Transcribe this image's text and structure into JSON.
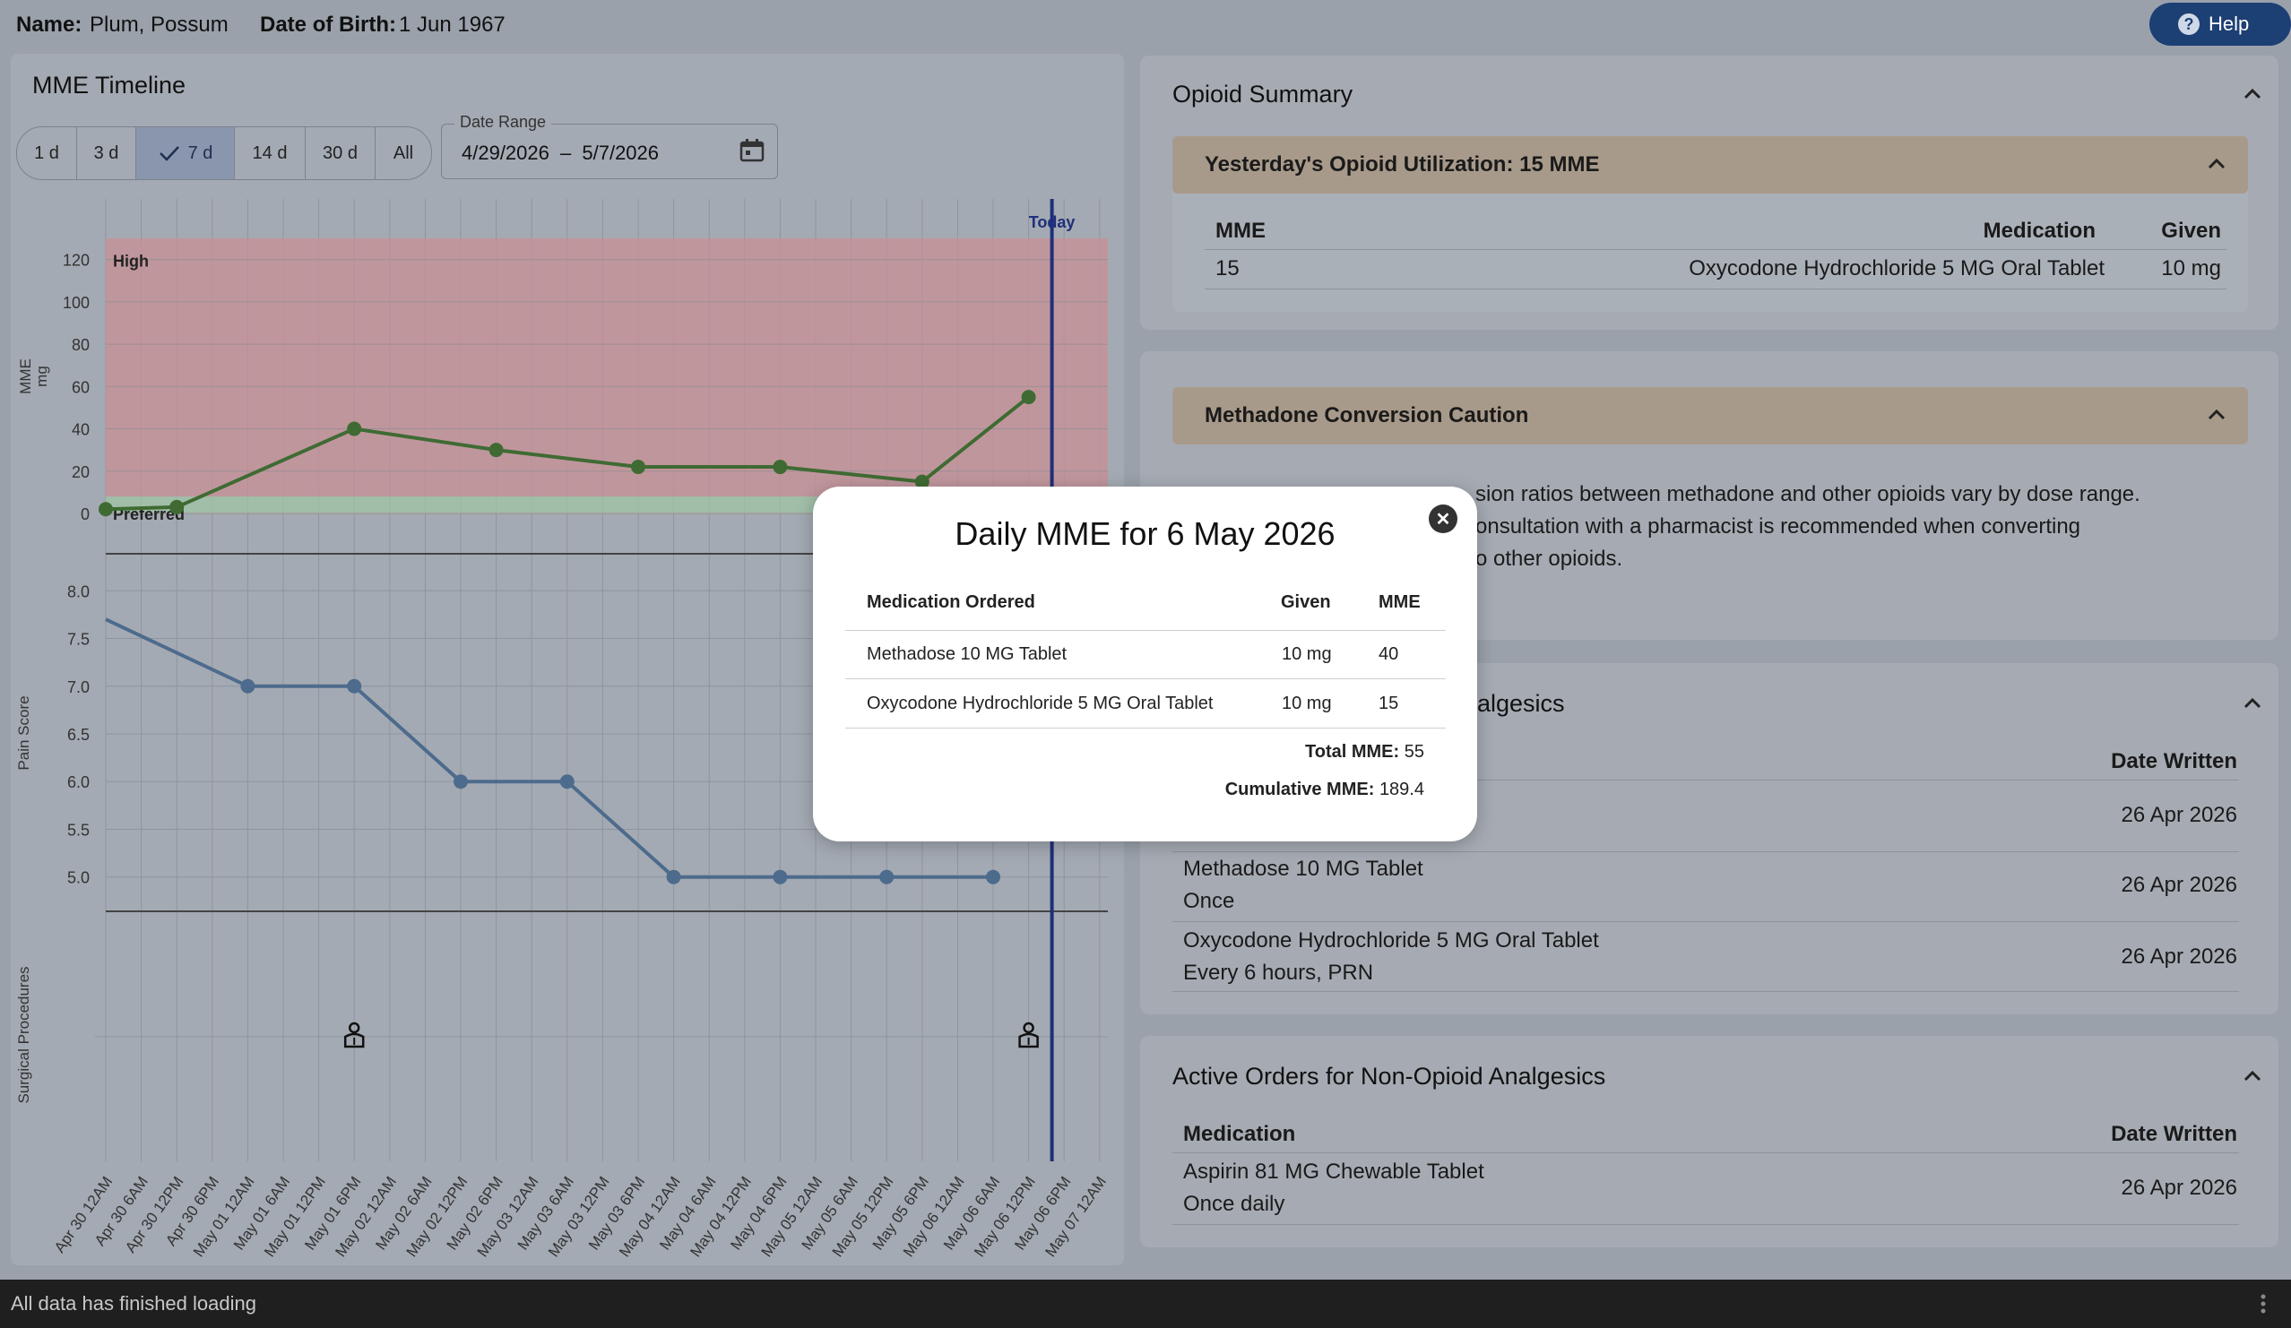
{
  "header": {
    "name_label": "Name:",
    "name_value": "Plum, Possum",
    "dob_label": "Date of Birth:",
    "dob_value": "1 Jun 1967",
    "help_label": "Help",
    "help_icon": "?"
  },
  "timeline": {
    "title": "MME Timeline",
    "ranges": [
      "1 d",
      "3 d",
      "7 d",
      "14 d",
      "30 d",
      "All"
    ],
    "selected_range": "7 d",
    "date_range_label": "Date Range",
    "date_start": "4/29/2026",
    "date_sep": "–",
    "date_end": "5/7/2026",
    "today_label": "Today"
  },
  "chart_data": [
    {
      "type": "line",
      "ylabel": "MME\nmg",
      "ylim": [
        0,
        130
      ],
      "yticks": [
        0,
        20,
        40,
        60,
        80,
        100,
        120
      ],
      "zones": [
        {
          "label": "High"
        },
        {
          "label": "Preferred"
        }
      ],
      "series": [
        {
          "x": [
            "Apr 30 12AM",
            "Apr 30 12PM",
            "May 01 6PM",
            "May 02 6PM",
            "May 03 6PM",
            "May 04 6PM",
            "May 05 6PM",
            "May 06 12PM"
          ],
          "values": [
            2,
            3,
            40,
            30,
            22,
            22,
            15,
            55
          ]
        }
      ],
      "colors": {
        "line": "#3f6b33",
        "high": "#c98f95",
        "preferred": "#9fc4a4"
      }
    },
    {
      "type": "line",
      "ylabel": "Pain Score",
      "ylim": [
        4.8,
        8.2
      ],
      "yticks": [
        "5.0",
        "5.5",
        "6.0",
        "6.5",
        "7.0",
        "7.5",
        "8.0"
      ],
      "series": [
        {
          "x": [
            "Apr 30 12AM",
            "May 01 12AM",
            "May 01 6PM",
            "May 02 12PM",
            "May 03 6AM",
            "May 04 12AM",
            "May 04 6PM",
            "May 05 12PM",
            "May 06 6AM"
          ],
          "values": [
            7.7,
            7.0,
            7.0,
            6.0,
            6.0,
            5.0,
            5.0,
            5.0,
            5.0
          ]
        }
      ],
      "colors": {
        "line": "#4d6b8c"
      }
    },
    {
      "type": "scatter",
      "ylabel": "Surgical Procedures",
      "series": [
        {
          "x": [
            "May 01 6PM",
            "May 06 12PM"
          ]
        }
      ]
    }
  ],
  "x_ticks": [
    "Apr 30 12AM",
    "Apr 30 6AM",
    "Apr 30 12PM",
    "Apr 30 6PM",
    "May 01 12AM",
    "May 01 6AM",
    "May 01 12PM",
    "May 01 6PM",
    "May 02 12AM",
    "May 02 6AM",
    "May 02 12PM",
    "May 02 6PM",
    "May 03 12AM",
    "May 03 6AM",
    "May 03 12PM",
    "May 03 6PM",
    "May 04 12AM",
    "May 04 6AM",
    "May 04 12PM",
    "May 04 6PM",
    "May 05 12AM",
    "May 05 6AM",
    "May 05 12PM",
    "May 05 6PM",
    "May 06 12AM",
    "May 06 6AM",
    "May 06 12PM",
    "May 06 6PM",
    "May 07 12AM"
  ],
  "opioid_summary": {
    "title": "Opioid Summary",
    "yesterday": {
      "title": "Yesterday's Opioid Utilization: 15 MME",
      "headers": [
        "MME",
        "Medication",
        "Given"
      ],
      "rows": [
        [
          "15",
          "Oxycodone Hydrochloride 5 MG Oral Tablet",
          "10 mg"
        ]
      ]
    }
  },
  "methadone": {
    "title": "Methadone Conversion Caution",
    "lines": [
      "sion ratios between methadone and other opioids vary by dose range.",
      "onsultation with a pharmacist is recommended when converting",
      "o other opioids."
    ]
  },
  "opioid_orders": {
    "title_tail": "algesics",
    "date_header": "Date Written",
    "rows": [
      {
        "name": "",
        "freq": "",
        "date": "26 Apr 2026"
      },
      {
        "name": "Methadose 10 MG Tablet",
        "freq": "Once",
        "date": "26 Apr 2026"
      },
      {
        "name": "Oxycodone Hydrochloride 5 MG Oral Tablet",
        "freq": "Every 6 hours, PRN",
        "date": "26 Apr 2026"
      }
    ]
  },
  "non_opioid": {
    "title": "Active Orders for Non-Opioid Analgesics",
    "headers": [
      "Medication",
      "Date Written"
    ],
    "rows": [
      {
        "name": "Aspirin 81 MG Chewable Tablet",
        "freq": "Once daily",
        "date": "26 Apr 2026"
      }
    ]
  },
  "modal": {
    "title": "Daily MME for 6 May 2026",
    "headers": [
      "Medication Ordered",
      "Given",
      "MME"
    ],
    "rows": [
      [
        "Methadose 10 MG Tablet",
        "10 mg",
        "40"
      ],
      [
        "Oxycodone Hydrochloride 5 MG Oral Tablet",
        "10 mg",
        "15"
      ]
    ],
    "total_label": "Total MME:",
    "total_value": "55",
    "cumulative_label": "Cumulative MME:",
    "cumulative_value": "189.4"
  },
  "status": {
    "text": "All data has finished loading"
  }
}
